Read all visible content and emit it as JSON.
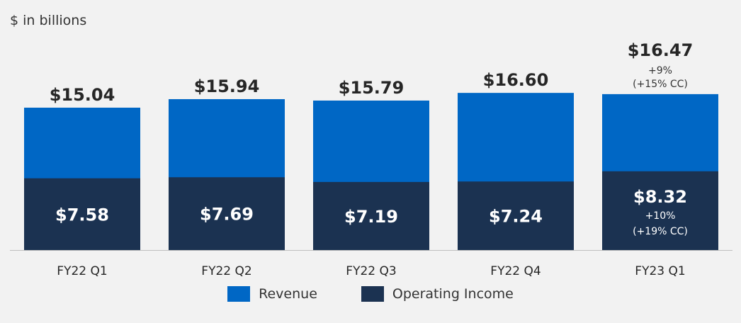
{
  "chart_data": {
    "type": "bar",
    "stacking": "overlay",
    "unit_label": "$ in billions",
    "categories": [
      "FY22 Q1",
      "FY22 Q2",
      "FY22 Q3",
      "FY22 Q4",
      "FY23 Q1"
    ],
    "series": [
      {
        "name": "Revenue",
        "color": "#0067c5",
        "values": [
          15.04,
          15.94,
          15.79,
          16.6,
          16.47
        ],
        "labels": [
          "$15.04",
          "$15.94",
          "$15.79",
          "$16.60",
          "$16.47"
        ],
        "annotations": [
          "",
          "",
          "",
          "",
          "+9%\n(+15% CC)"
        ]
      },
      {
        "name": "Operating Income",
        "color": "#1b3251",
        "values": [
          7.58,
          7.69,
          7.19,
          7.24,
          8.32
        ],
        "labels": [
          "$7.58",
          "$7.69",
          "$7.19",
          "$7.24",
          "$8.32"
        ],
        "annotations": [
          "",
          "",
          "",
          "",
          "+10%\n(+19% CC)"
        ]
      }
    ],
    "ylim": [
      0,
      18
    ],
    "grid": false,
    "legend": "bottom-center"
  }
}
